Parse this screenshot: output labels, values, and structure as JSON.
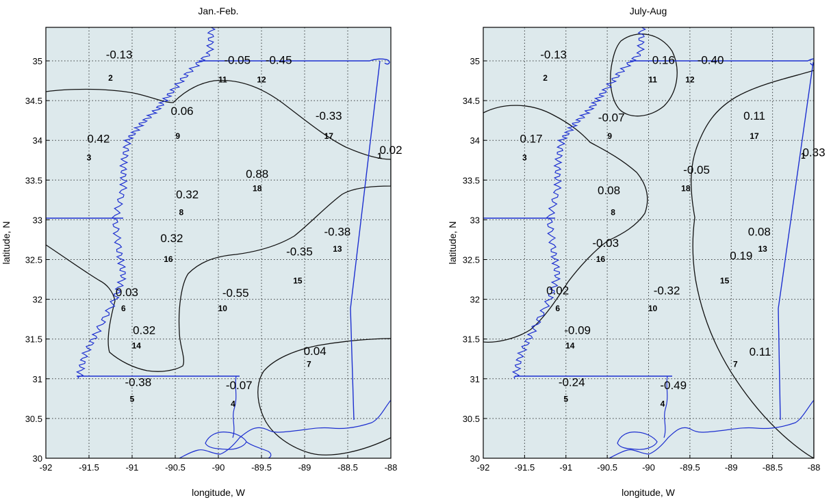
{
  "figure": {
    "x_axis_label": "longitude, W",
    "y_axis_label": "latitude, N",
    "x_ticks": [
      "-92",
      "-91.5",
      "-91",
      "-90.5",
      "-90",
      "-89.5",
      "-89",
      "-88.5",
      "-88"
    ],
    "y_ticks": [
      "30",
      "30.5",
      "31",
      "31.5",
      "32",
      "32.5",
      "33",
      "33.5",
      "34",
      "34.5",
      "35"
    ],
    "colors": {
      "shaded_region": "#dde9ec",
      "contour_line": "#111111",
      "state_border": "#1d2fd0"
    }
  },
  "panels": [
    {
      "title": "Jan.-Feb.",
      "values": [
        {
          "text": "-0.13",
          "lon": -91.15,
          "lat": 35.03
        },
        {
          "text": "-0.05",
          "lon": -89.78,
          "lat": 34.96
        },
        {
          "text": "-0.45",
          "lon": -89.3,
          "lat": 34.96
        },
        {
          "text": "0.06",
          "lon": -90.42,
          "lat": 34.32
        },
        {
          "text": "-0.33",
          "lon": -88.72,
          "lat": 34.26
        },
        {
          "text": "0.42",
          "lon": -91.39,
          "lat": 33.97
        },
        {
          "text": "0.02",
          "lon": -88.0,
          "lat": 33.83
        },
        {
          "text": "0.88",
          "lon": -89.55,
          "lat": 33.53
        },
        {
          "text": "0.32",
          "lon": -90.36,
          "lat": 33.27
        },
        {
          "text": "-0.38",
          "lon": -88.62,
          "lat": 32.8
        },
        {
          "text": "0.32",
          "lon": -90.54,
          "lat": 32.72
        },
        {
          "text": "-0.35",
          "lon": -89.06,
          "lat": 32.55
        },
        {
          "text": "0.03",
          "lon": -91.06,
          "lat": 32.04
        },
        {
          "text": "-0.55",
          "lon": -89.8,
          "lat": 32.03
        },
        {
          "text": "0.32",
          "lon": -90.86,
          "lat": 31.56
        },
        {
          "text": "0.04",
          "lon": -88.88,
          "lat": 31.3
        },
        {
          "text": "-0.38",
          "lon": -90.93,
          "lat": 30.91
        },
        {
          "text": "-0.07",
          "lon": -89.76,
          "lat": 30.87
        }
      ]
    },
    {
      "title": "July-Aug",
      "values": [
        {
          "text": "-0.13",
          "lon": -91.15,
          "lat": 35.03
        },
        {
          "text": "0.16",
          "lon": -89.82,
          "lat": 34.96
        },
        {
          "text": "-0.40",
          "lon": -89.25,
          "lat": 34.96
        },
        {
          "text": "-0.07",
          "lon": -90.45,
          "lat": 34.24
        },
        {
          "text": "0.11",
          "lon": -88.72,
          "lat": 34.26
        },
        {
          "text": "0.17",
          "lon": -91.42,
          "lat": 33.97
        },
        {
          "text": "0.33",
          "lon": -88.0,
          "lat": 33.8
        },
        {
          "text": "-0.05",
          "lon": -89.42,
          "lat": 33.58
        },
        {
          "text": "0.08",
          "lon": -90.48,
          "lat": 33.32
        },
        {
          "text": "0.08",
          "lon": -88.66,
          "lat": 32.8
        },
        {
          "text": "-0.03",
          "lon": -90.52,
          "lat": 32.66
        },
        {
          "text": "0.19",
          "lon": -88.88,
          "lat": 32.5
        },
        {
          "text": "-0.32",
          "lon": -89.78,
          "lat": 32.06
        },
        {
          "text": "0.02",
          "lon": -91.1,
          "lat": 32.06
        },
        {
          "text": "-0.09",
          "lon": -90.86,
          "lat": 31.56
        },
        {
          "text": "0.11",
          "lon": -88.65,
          "lat": 31.29
        },
        {
          "text": "-0.24",
          "lon": -90.93,
          "lat": 30.91
        },
        {
          "text": "-0.49",
          "lon": -89.7,
          "lat": 30.87
        }
      ]
    }
  ],
  "stations": [
    {
      "id": "1",
      "lon": -88.13,
      "lat": 33.77
    },
    {
      "id": "2",
      "lon": -91.25,
      "lat": 34.75
    },
    {
      "id": "3",
      "lon": -91.5,
      "lat": 33.75
    },
    {
      "id": "4",
      "lon": -89.83,
      "lat": 30.65
    },
    {
      "id": "5",
      "lon": -91.0,
      "lat": 30.71
    },
    {
      "id": "6",
      "lon": -91.1,
      "lat": 31.85
    },
    {
      "id": "7",
      "lon": -88.95,
      "lat": 31.15
    },
    {
      "id": "8",
      "lon": -90.43,
      "lat": 33.06
    },
    {
      "id": "9",
      "lon": -90.47,
      "lat": 34.02
    },
    {
      "id": "10",
      "lon": -89.95,
      "lat": 31.85
    },
    {
      "id": "11",
      "lon": -89.95,
      "lat": 34.73
    },
    {
      "id": "12",
      "lon": -89.5,
      "lat": 34.73
    },
    {
      "id": "13",
      "lon": -88.62,
      "lat": 32.6
    },
    {
      "id": "14",
      "lon": -90.95,
      "lat": 31.38
    },
    {
      "id": "15",
      "lon": -89.08,
      "lat": 32.2
    },
    {
      "id": "16",
      "lon": -90.58,
      "lat": 32.47
    },
    {
      "id": "17",
      "lon": -88.72,
      "lat": 34.02
    },
    {
      "id": "18",
      "lon": -89.55,
      "lat": 33.36
    }
  ]
}
